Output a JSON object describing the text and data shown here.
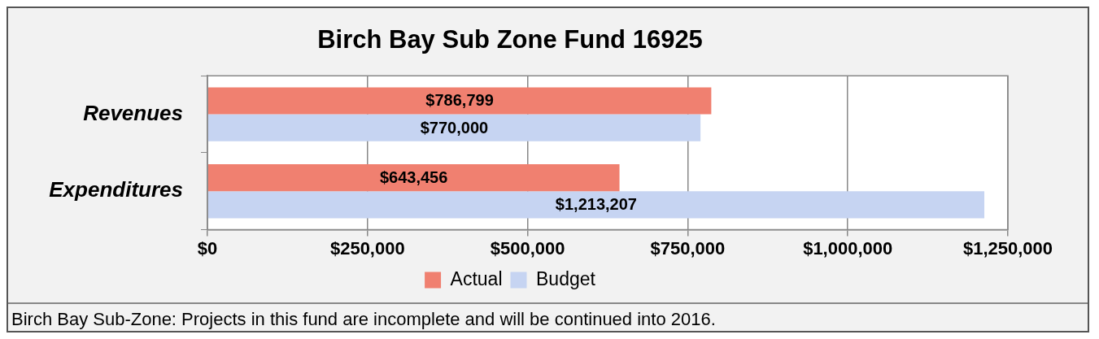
{
  "chart_data": {
    "type": "bar",
    "orientation": "horizontal",
    "title": "Birch Bay Sub Zone Fund 16925",
    "categories": [
      "Revenues",
      "Expenditures"
    ],
    "series": [
      {
        "name": "Actual",
        "color": "#f08070",
        "values": [
          786799,
          643456
        ],
        "value_labels": [
          "$786,799",
          "$643,456"
        ]
      },
      {
        "name": "Budget",
        "color": "#c6d4f2",
        "values": [
          770000,
          1213207
        ],
        "value_labels": [
          "$770,000",
          "$1,213,207"
        ]
      }
    ],
    "xlim": [
      0,
      1250000
    ],
    "xticks": [
      {
        "value": 0,
        "label": "$0"
      },
      {
        "value": 250000,
        "label": "$250,000"
      },
      {
        "value": 500000,
        "label": "$500,000"
      },
      {
        "value": 750000,
        "label": "$750,000"
      },
      {
        "value": 1000000,
        "label": "$1,000,000"
      },
      {
        "value": 1250000,
        "label": "$1,250,000"
      }
    ],
    "grid": "x",
    "legend": "bottom",
    "annotations": [
      "Birch Bay Sub-Zone: Projects in this fund are incomplete and will be continued into 2016."
    ]
  }
}
